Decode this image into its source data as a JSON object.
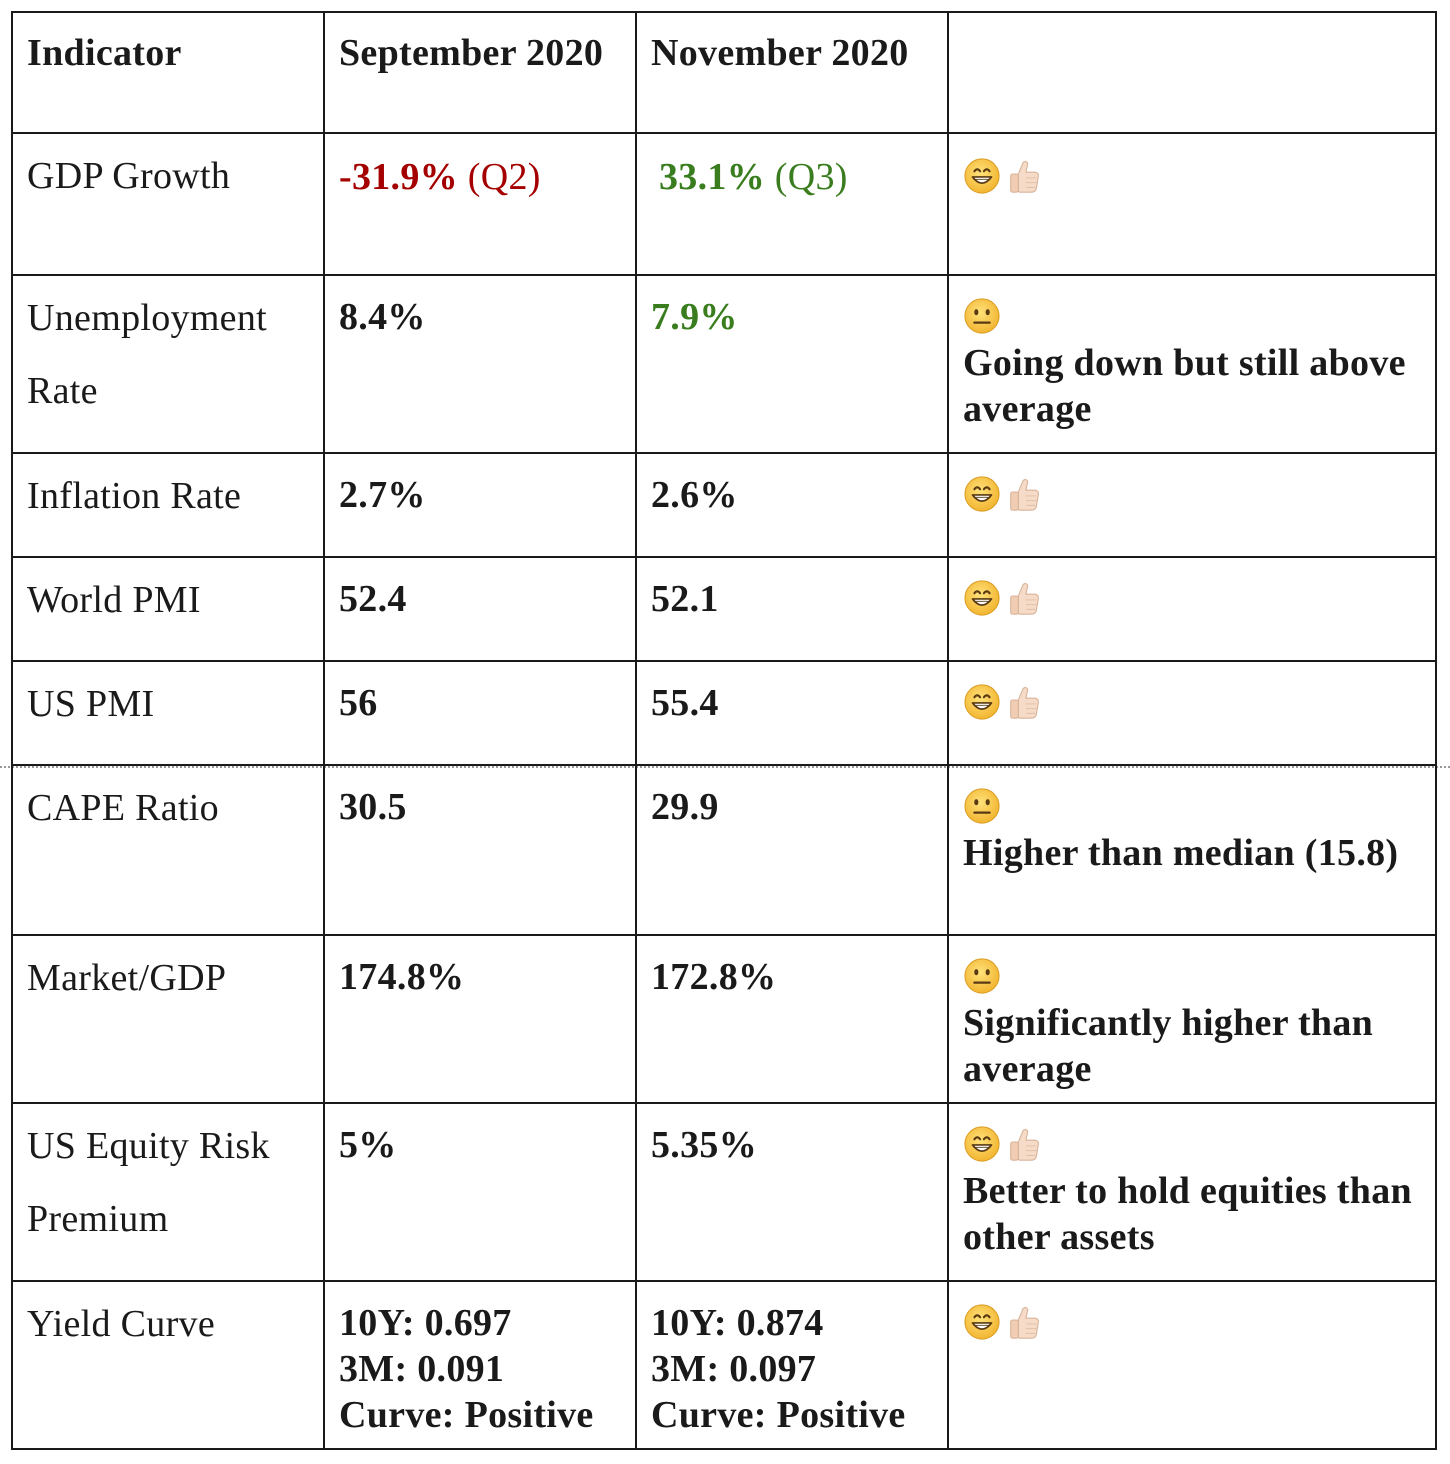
{
  "table": {
    "headers": [
      "Indicator",
      "September 2020",
      "November 2020",
      ""
    ],
    "rows": [
      {
        "indicator": "GDP Growth",
        "sep": "-31.9%",
        "sep_q": " (Q2)",
        "nov": "33.1%",
        "nov_q": " (Q3)",
        "icons": [
          "grin-icon",
          "thumbs-up-icon"
        ],
        "note": ""
      },
      {
        "indicator": "Unemployment Rate",
        "sep": "8.4%",
        "nov": "7.9%",
        "icons": [
          "neutral-face-icon"
        ],
        "note": "Going down but still above average"
      },
      {
        "indicator": "Inflation Rate",
        "sep": "2.7%",
        "nov": "2.6%",
        "icons": [
          "grin-icon",
          "thumbs-up-icon"
        ],
        "note": ""
      },
      {
        "indicator": "World PMI",
        "sep": "52.4",
        "nov": "52.1",
        "icons": [
          "grin-icon",
          "thumbs-up-icon"
        ],
        "note": ""
      },
      {
        "indicator": "US PMI",
        "sep": "56",
        "nov": "55.4",
        "icons": [
          "grin-icon",
          "thumbs-up-icon"
        ],
        "note": ""
      },
      {
        "indicator": "CAPE Ratio",
        "sep": "30.5",
        "nov": "29.9",
        "icons": [
          "neutral-face-icon"
        ],
        "note": "Higher than median (15.8)"
      },
      {
        "indicator": "Market/GDP",
        "sep": "174.8%",
        "nov": "172.8%",
        "icons": [
          "neutral-face-icon"
        ],
        "note": "Significantly higher than average"
      },
      {
        "indicator": "US Equity Risk Premium",
        "sep": "5%",
        "nov": "5.35%",
        "icons": [
          "grin-icon",
          "thumbs-up-icon"
        ],
        "note": "Better to hold equities than other assets"
      },
      {
        "indicator": "Yield Curve",
        "sep_lines": [
          "10Y: 0.697",
          "3M: 0.091",
          "Curve: Positive"
        ],
        "nov_lines": [
          "10Y: 0.874",
          "3M: 0.097",
          "Curve: Positive"
        ],
        "icons": [
          "grin-icon",
          "thumbs-up-icon"
        ],
        "note": ""
      }
    ]
  },
  "colors": {
    "negative": "#a40000",
    "positive": "#3a7d1f",
    "emoji_face": "#f7c64a",
    "thumb_skin": "#f6dcc8"
  }
}
